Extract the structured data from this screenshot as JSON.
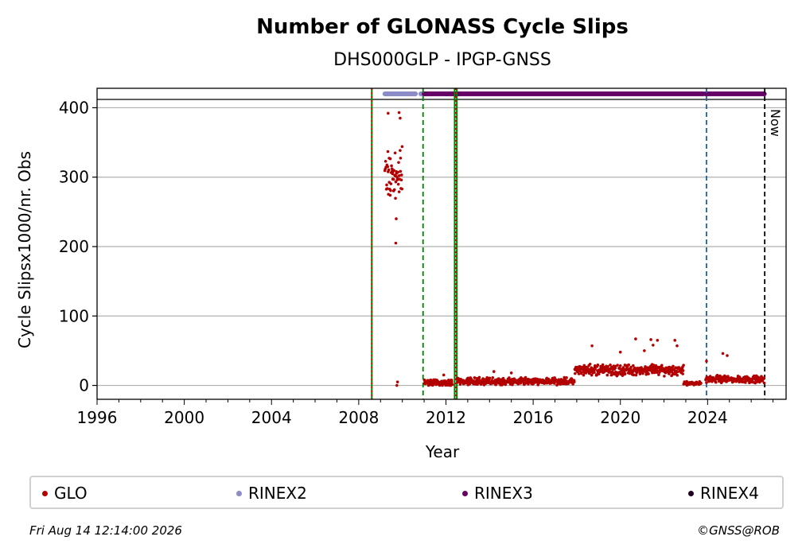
{
  "chart_data": {
    "type": "scatter",
    "title": "Number of GLONASS Cycle Slips",
    "subtitle": "DHS000GLP - IPGP-GNSS",
    "xlabel": "Year",
    "ylabel": "Cycle Slipsx1000/nr. Obs",
    "xlim": [
      1996,
      2027.6
    ],
    "ylim": [
      -20,
      428
    ],
    "x_ticks": [
      1996,
      2000,
      2004,
      2008,
      2012,
      2016,
      2020,
      2024
    ],
    "y_ticks": [
      0,
      100,
      200,
      300,
      400
    ],
    "grid": "horizontal",
    "now_label": "Now",
    "now_year": 2026.62,
    "vlines": [
      {
        "x": 2008.6,
        "color": "#008000",
        "style": "solid"
      },
      {
        "x": 2008.6,
        "color": "#d00000",
        "style": "dotted"
      },
      {
        "x": 2010.95,
        "color": "#008000",
        "style": "dashed"
      },
      {
        "x": 2012.4,
        "color": "#008000",
        "style": "solid"
      },
      {
        "x": 2012.5,
        "color": "#008000",
        "style": "solid"
      },
      {
        "x": 2012.45,
        "color": "#d00000",
        "style": "dotted"
      },
      {
        "x": 2023.95,
        "color": "#1f5fa8",
        "style": "dashed"
      },
      {
        "x": 2026.62,
        "color": "#000000",
        "style": "dashed"
      }
    ],
    "format_bars": [
      {
        "name": "RINEX2",
        "color": "#8c8cc8",
        "start": 2009.2,
        "end": 2010.6
      },
      {
        "name": "RINEX2",
        "color": "#8c8cc8",
        "start": 2010.85,
        "end": 2011.0
      },
      {
        "name": "RINEX3",
        "color": "#660066",
        "start": 2011.0,
        "end": 2023.8
      },
      {
        "name": "RINEX3",
        "color": "#660066",
        "start": 2023.9,
        "end": 2026.6
      }
    ],
    "series": [
      {
        "name": "GLO",
        "color": "#b30000",
        "segments": [
          {
            "x_start": 2009.2,
            "x_end": 2010.0,
            "y_center": 300,
            "y_spread": 45,
            "outliers": [
              [
                2009.35,
                392
              ],
              [
                2009.85,
                393
              ],
              [
                2009.9,
                385
              ],
              [
                2009.7,
                205
              ],
              [
                2009.72,
                240
              ],
              [
                2009.75,
                0
              ],
              [
                2009.78,
                5
              ]
            ]
          },
          {
            "x_start": 2011.0,
            "x_end": 2012.3,
            "y_center": 4,
            "y_spread": 5,
            "outliers": [
              [
                2011.9,
                15
              ]
            ]
          },
          {
            "x_start": 2012.5,
            "x_end": 2017.9,
            "y_center": 6,
            "y_spread": 6,
            "outliers": [
              [
                2014.2,
                20
              ],
              [
                2015.0,
                18
              ]
            ]
          },
          {
            "x_start": 2017.9,
            "x_end": 2022.9,
            "y_center": 22,
            "y_spread": 9,
            "outliers": [
              [
                2018.7,
                57
              ],
              [
                2020.7,
                67
              ],
              [
                2021.4,
                66
              ],
              [
                2021.7,
                65
              ],
              [
                2021.5,
                58
              ],
              [
                2021.1,
                50
              ],
              [
                2020.0,
                48
              ],
              [
                2022.5,
                65
              ],
              [
                2022.6,
                57
              ]
            ]
          },
          {
            "x_start": 2022.9,
            "x_end": 2023.7,
            "y_center": 3,
            "y_spread": 3,
            "outliers": []
          },
          {
            "x_start": 2023.9,
            "x_end": 2026.6,
            "y_center": 9,
            "y_spread": 6,
            "outliers": [
              [
                2023.95,
                35
              ],
              [
                2024.7,
                46
              ],
              [
                2024.9,
                43
              ]
            ]
          }
        ]
      }
    ],
    "legend": [
      {
        "label": "GLO",
        "color": "#b30000"
      },
      {
        "label": "RINEX2",
        "color": "#8c8cc8"
      },
      {
        "label": "RINEX3",
        "color": "#660066"
      },
      {
        "label": "RINEX4",
        "color": "#220022"
      }
    ]
  },
  "footer": {
    "timestamp": "Fri Aug 14 12:14:00 2026",
    "credit": "©GNSS@ROB"
  }
}
